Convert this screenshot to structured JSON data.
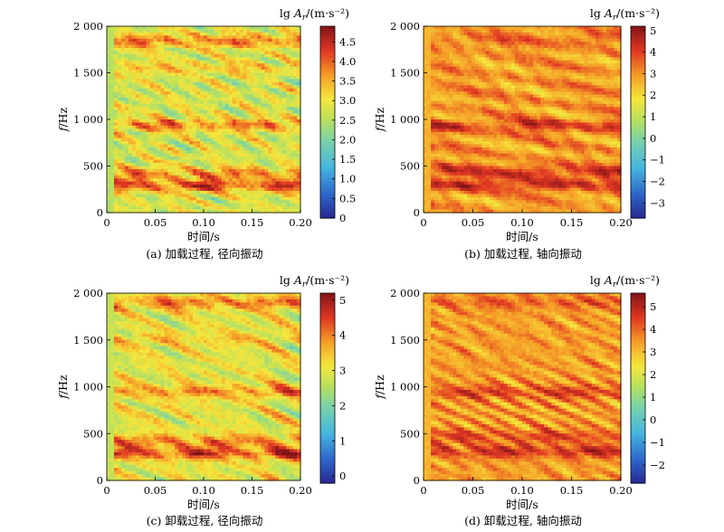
{
  "figure": {
    "panels": [
      {
        "caption": "(a) 加载过程, 径向振动",
        "colorbar_label": "lg Ar/(m·s⁻²)",
        "colorbar_range": [
          0,
          4.9
        ],
        "colorbar_ticks": [
          "0",
          "0.5",
          "1.0",
          "1.5",
          "2.0",
          "2.5",
          "3.0",
          "3.5",
          "4.0",
          "4.5"
        ]
      },
      {
        "caption": "(b) 加载过程, 轴向振动",
        "colorbar_label": "lg Ar/(m·s⁻²)",
        "colorbar_range": [
          -3.7,
          5.2
        ],
        "colorbar_ticks": [
          "−3",
          "−2",
          "−1",
          "0",
          "1",
          "2",
          "3",
          "4",
          "5"
        ]
      },
      {
        "caption": "(c) 卸载过程, 径向振动",
        "colorbar_label": "lg Ar/(m·s⁻²)",
        "colorbar_range": [
          -0.2,
          5.2
        ],
        "colorbar_ticks": [
          "0",
          "1",
          "2",
          "3",
          "4",
          "5"
        ]
      },
      {
        "caption": "(d) 卸载过程, 轴向振动",
        "colorbar_label": "lg Ar/(m·s⁻²)",
        "colorbar_range": [
          -2.8,
          5.6
        ],
        "colorbar_ticks": [
          "−2",
          "−1",
          "0",
          "1",
          "2",
          "3",
          "4",
          "5"
        ]
      }
    ]
  },
  "chart_data": [
    {
      "type": "heatmap",
      "title": "(a) 加载过程, 径向振动",
      "xlabel": "时间/s",
      "ylabel": "f/Hz",
      "xlim": [
        0,
        0.2
      ],
      "ylim": [
        0,
        2000
      ],
      "xticks": [
        "0",
        "0.05",
        "0.10",
        "0.15",
        "0.20"
      ],
      "yticks": [
        "0",
        "500",
        "1 000",
        "1 500",
        "2 000"
      ],
      "colorbar": {
        "label": "lg Ar/(m·s⁻²)",
        "range": [
          0,
          4.9
        ],
        "ticks": [
          "0",
          "0.5",
          "1.0",
          "1.5",
          "2.0",
          "2.5",
          "3.0",
          "3.5",
          "4.0",
          "4.5"
        ]
      },
      "bands": [
        {
          "f": 290,
          "level": 4.5
        },
        {
          "f": 420,
          "level": 3.9
        },
        {
          "f": 940,
          "level": 4.0
        },
        {
          "f": 1840,
          "level": 4.1
        },
        {
          "f": 1550,
          "level": 3.4
        }
      ],
      "background_level": 2.8
    },
    {
      "type": "heatmap",
      "title": "(b) 加载过程, 轴向振动",
      "xlabel": "时间/s",
      "ylabel": "f/Hz",
      "xlim": [
        0,
        0.2
      ],
      "ylim": [
        0,
        2000
      ],
      "xticks": [
        "0",
        "0.05",
        "0.10",
        "0.15",
        "0.20"
      ],
      "yticks": [
        "0",
        "500",
        "1 000",
        "1 500",
        "2 000"
      ],
      "colorbar": {
        "label": "lg Ar/(m·s⁻²)",
        "range": [
          -3.7,
          5.2
        ],
        "ticks": [
          "−3",
          "−2",
          "−1",
          "0",
          "1",
          "2",
          "3",
          "4",
          "5"
        ]
      },
      "bands": [
        {
          "f": 300,
          "level": 4.6
        },
        {
          "f": 440,
          "level": 4.4
        },
        {
          "f": 930,
          "level": 4.3
        },
        {
          "f": 1850,
          "level": 3.6
        }
      ],
      "background_level": 2.9
    },
    {
      "type": "heatmap",
      "title": "(c) 卸载过程, 径向振动",
      "xlabel": "时间/s",
      "ylabel": "f/Hz",
      "xlim": [
        0,
        0.2
      ],
      "ylim": [
        0,
        2000
      ],
      "xticks": [
        "0",
        "0.05",
        "0.10",
        "0.15",
        "0.20"
      ],
      "yticks": [
        "0",
        "500",
        "1 000",
        "1 500",
        "2 000"
      ],
      "colorbar": {
        "label": "lg Ar/(m·s⁻²)",
        "range": [
          -0.2,
          5.2
        ],
        "ticks": [
          "0",
          "1",
          "2",
          "3",
          "4",
          "5"
        ]
      },
      "bands": [
        {
          "f": 290,
          "level": 4.8
        },
        {
          "f": 420,
          "level": 4.2
        },
        {
          "f": 950,
          "level": 4.1
        },
        {
          "f": 1900,
          "level": 4.3
        },
        {
          "f": 1500,
          "level": 3.5
        }
      ],
      "background_level": 3.0
    },
    {
      "type": "heatmap",
      "title": "(d) 卸载过程, 轴向振动",
      "xlabel": "时间/s",
      "ylabel": "f/Hz",
      "xlim": [
        0,
        0.2
      ],
      "ylim": [
        0,
        2000
      ],
      "xticks": [
        "0",
        "0.05",
        "0.10",
        "0.15",
        "0.20"
      ],
      "yticks": [
        "0",
        "500",
        "1 000",
        "1 500",
        "2 000"
      ],
      "colorbar": {
        "label": "lg Ar/(m·s⁻²)",
        "range": [
          -2.8,
          5.6
        ],
        "ticks": [
          "−2",
          "−1",
          "0",
          "1",
          "2",
          "3",
          "4",
          "5"
        ]
      },
      "bands": [
        {
          "f": 310,
          "level": 5.0
        },
        {
          "f": 470,
          "level": 4.6
        },
        {
          "f": 940,
          "level": 4.7
        },
        {
          "f": 1900,
          "level": 4.2
        }
      ],
      "background_level": 3.4
    }
  ]
}
